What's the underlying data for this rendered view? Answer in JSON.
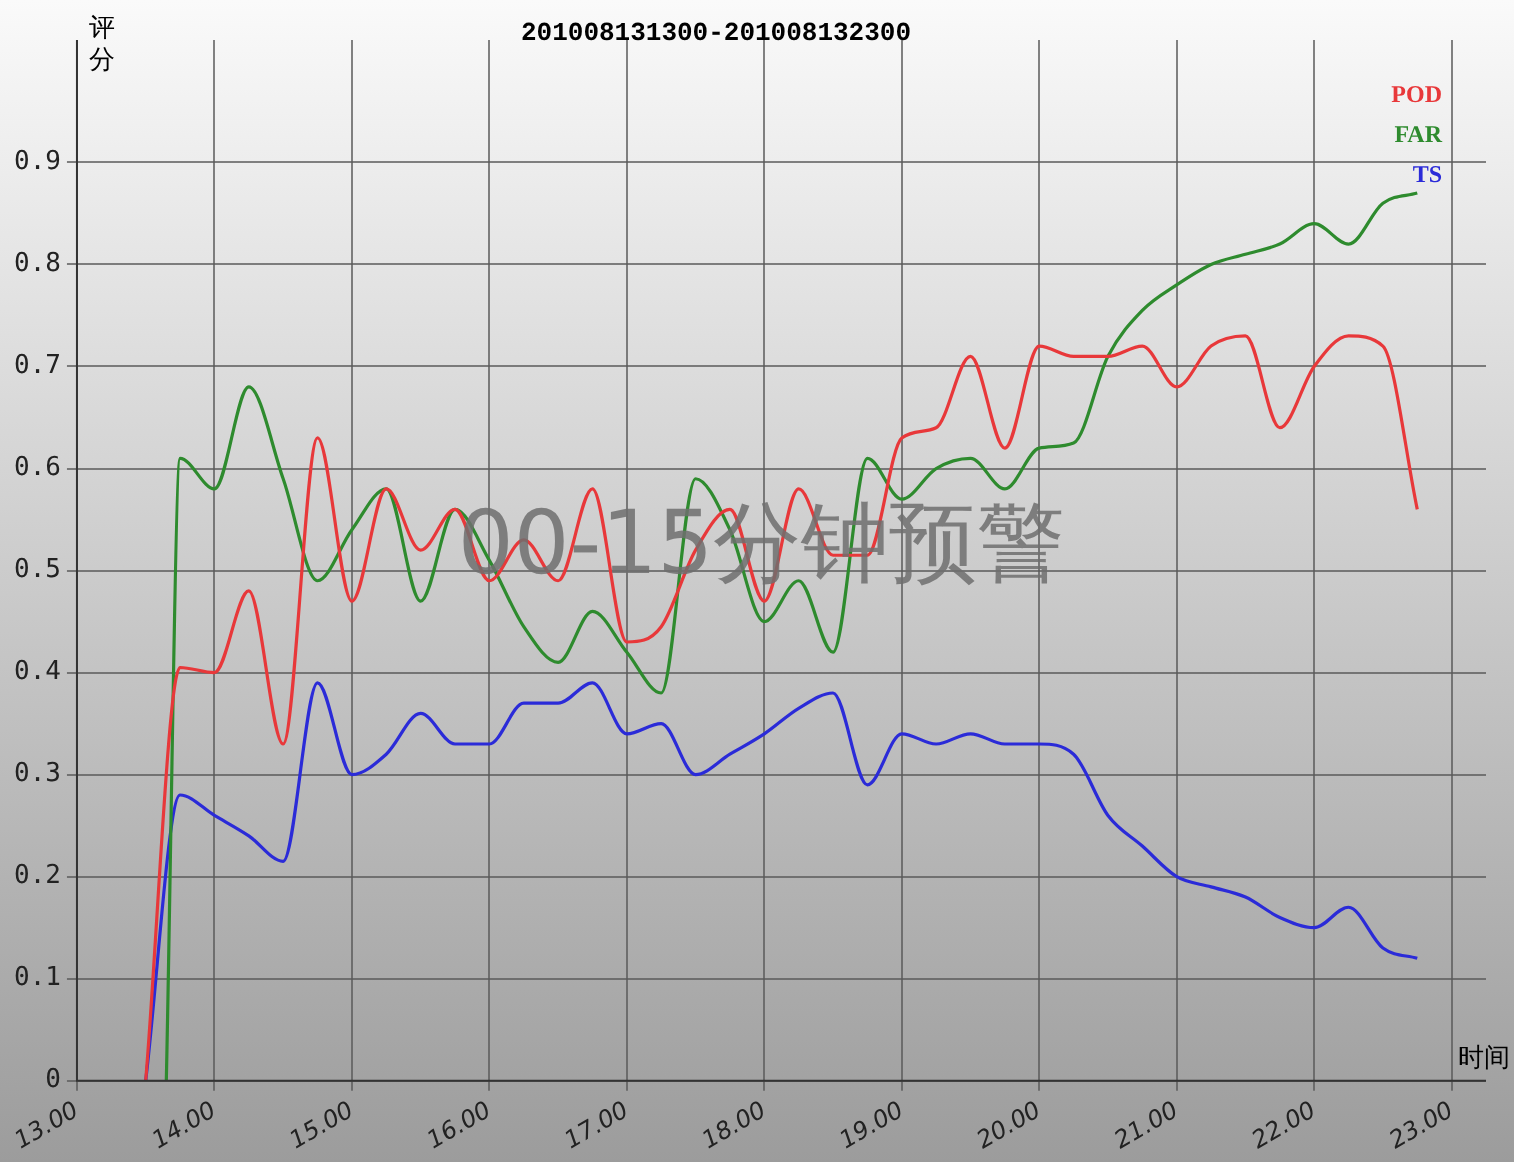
{
  "chart_data": {
    "type": "line",
    "title": "201008131300-201008132300",
    "xlabel": "时间",
    "ylabel": "评分",
    "annotations": [
      "00-15分钟预警"
    ],
    "x": [
      13.5,
      13.75,
      14,
      14.25,
      14.5,
      14.75,
      15,
      15.25,
      15.5,
      15.75,
      16,
      16.25,
      16.5,
      16.75,
      17,
      17.25,
      17.5,
      17.75,
      18,
      18.25,
      18.5,
      18.75,
      19,
      19.25,
      19.5,
      19.75,
      20,
      20.25,
      20.5,
      20.75,
      21,
      21.25,
      21.5,
      21.75,
      22,
      22.25,
      22.5,
      22.75
    ],
    "series": [
      {
        "name": "POD",
        "color": "#e8383a",
        "values": [
          0,
          0.405,
          0.4,
          0.48,
          0.33,
          0.63,
          0.47,
          0.58,
          0.52,
          0.56,
          0.49,
          0.53,
          0.49,
          0.58,
          0.43,
          0.445,
          0.52,
          0.56,
          0.47,
          0.58,
          0.515,
          0.515,
          0.63,
          0.64,
          0.71,
          0.62,
          0.72,
          0.71,
          0.71,
          0.72,
          0.68,
          0.72,
          0.73,
          0.64,
          0.7,
          0.73,
          0.72,
          0.56
        ]
      },
      {
        "name": "FAR",
        "color": "#2e8b2e",
        "x": [
          13.65,
          13.75,
          14,
          14.25,
          14.5,
          14.75,
          15,
          15.25,
          15.5,
          15.75,
          16,
          16.25,
          16.5,
          16.75,
          17,
          17.25,
          17.5,
          17.75,
          18,
          18.25,
          18.5,
          18.75,
          19,
          19.25,
          19.5,
          19.75,
          20,
          20.25,
          20.5,
          20.75,
          21,
          21.25,
          21.5,
          21.75,
          22,
          22.25,
          22.5,
          22.75
        ],
        "values": [
          0,
          0.61,
          0.58,
          0.68,
          0.59,
          0.49,
          0.54,
          0.58,
          0.47,
          0.56,
          0.51,
          0.445,
          0.41,
          0.46,
          0.42,
          0.38,
          0.59,
          0.54,
          0.45,
          0.49,
          0.42,
          0.61,
          0.57,
          0.6,
          0.61,
          0.58,
          0.62,
          0.625,
          0.71,
          0.755,
          0.78,
          0.8,
          0.81,
          0.82,
          0.84,
          0.82,
          0.86,
          0.87
        ]
      },
      {
        "name": "TS",
        "color": "#2b2bd8",
        "values": [
          0,
          0.28,
          0.26,
          0.24,
          0.215,
          0.39,
          0.3,
          0.32,
          0.36,
          0.33,
          0.33,
          0.37,
          0.37,
          0.39,
          0.34,
          0.35,
          0.3,
          0.32,
          0.34,
          0.365,
          0.38,
          0.29,
          0.34,
          0.33,
          0.34,
          0.33,
          0.33,
          0.32,
          0.26,
          0.23,
          0.2,
          0.19,
          0.18,
          0.16,
          0.15,
          0.17,
          0.13,
          0.12
        ]
      }
    ],
    "xlim": [
      13,
      23.25
    ],
    "xticks": [
      {
        "value": 13,
        "label": "13.00"
      },
      {
        "value": 14,
        "label": "14.00"
      },
      {
        "value": 15,
        "label": "15.00"
      },
      {
        "value": 16,
        "label": "16.00"
      },
      {
        "value": 17,
        "label": "17.00"
      },
      {
        "value": 18,
        "label": "18.00"
      },
      {
        "value": 19,
        "label": "19.00"
      },
      {
        "value": 20,
        "label": "20.00"
      },
      {
        "value": 21,
        "label": "21.00"
      },
      {
        "value": 22,
        "label": "22.00"
      },
      {
        "value": 23,
        "label": "23.00"
      }
    ],
    "ylim": [
      0,
      1.02
    ],
    "yticks": [
      0,
      {
        "value": 0.1,
        "label": "0.1"
      },
      {
        "value": 0.2,
        "label": "0.2"
      },
      {
        "value": 0.3,
        "label": "0.3"
      },
      {
        "value": 0.4,
        "label": "0.4"
      },
      {
        "value": 0.5,
        "label": "0.5"
      },
      {
        "value": 0.6,
        "label": "0.6"
      },
      {
        "value": 0.7,
        "label": "0.7"
      },
      {
        "value": 0.8,
        "label": "0.8"
      },
      {
        "value": 0.9,
        "label": "0.9"
      }
    ],
    "grid": true,
    "legend": "top right",
    "marker": "none",
    "line_style": "solid"
  }
}
